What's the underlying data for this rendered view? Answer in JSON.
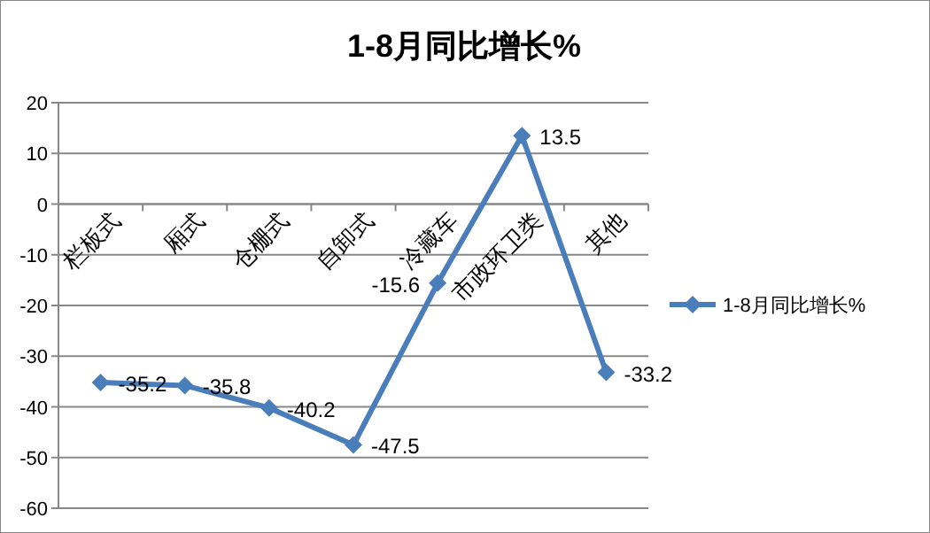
{
  "chart_data": {
    "type": "line",
    "title": "1-8月同比增长%",
    "categories": [
      "栏板式",
      "厢式",
      "仓栅式",
      "自卸式",
      "冷藏车",
      "市政环卫类",
      "其他"
    ],
    "series": [
      {
        "name": "1-8月同比增长%",
        "color": "#4a7ebb",
        "values": [
          -35.2,
          -35.8,
          -40.2,
          -47.5,
          -15.6,
          13.5,
          -33.2
        ]
      }
    ],
    "ylim": [
      -60,
      20
    ],
    "yticks": [
      -60,
      -50,
      -40,
      -30,
      -20,
      -10,
      0,
      10,
      20
    ],
    "grid": "y",
    "legend": "right",
    "marker": "diamond",
    "line_style": "solid",
    "data_labels": true
  }
}
